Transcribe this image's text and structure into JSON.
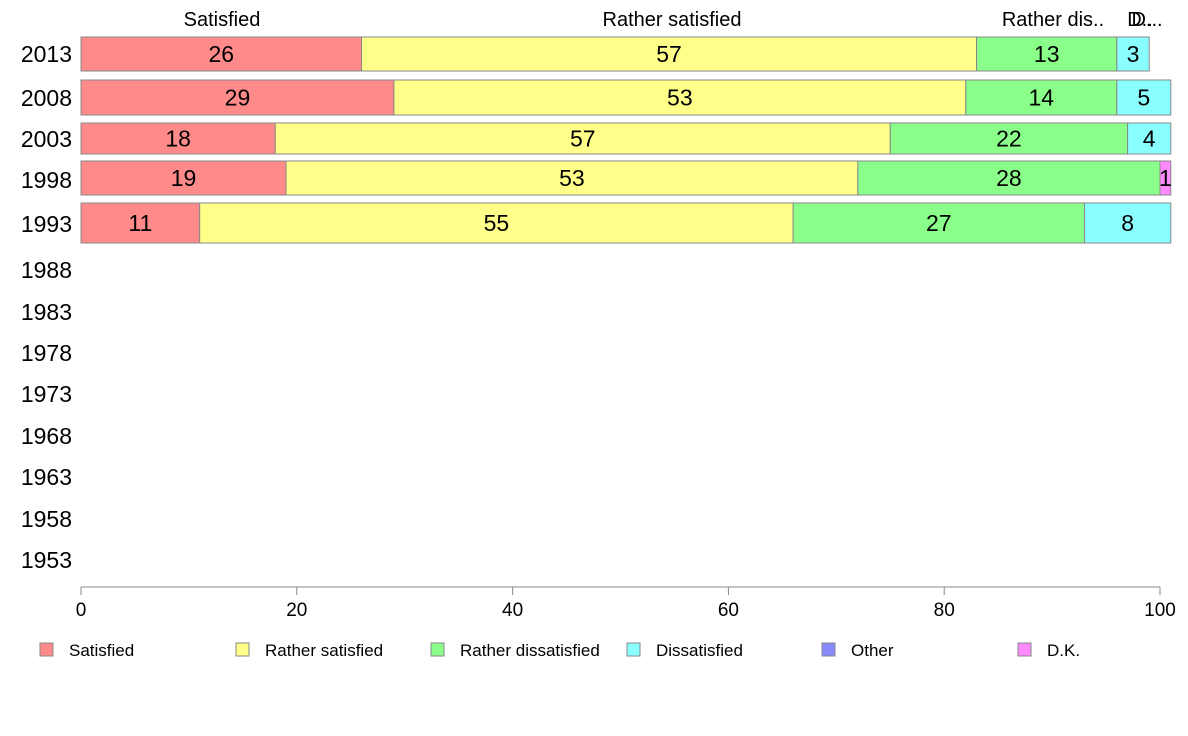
{
  "chart_data": {
    "type": "bar",
    "orientation": "horizontal",
    "stacked": true,
    "categories": [
      "2013",
      "2008",
      "2003",
      "1998",
      "1993",
      "1988",
      "1983",
      "1978",
      "1973",
      "1968",
      "1963",
      "1958",
      "1953"
    ],
    "series": [
      {
        "name": "Satisfied",
        "color": "#ff8a8a",
        "values": [
          26,
          29,
          18,
          19,
          11,
          null,
          null,
          null,
          null,
          null,
          null,
          null,
          null
        ]
      },
      {
        "name": "Rather satisfied",
        "color": "#ffff8a",
        "values": [
          57,
          53,
          57,
          53,
          55,
          null,
          null,
          null,
          null,
          null,
          null,
          null,
          null
        ]
      },
      {
        "name": "Rather dissatisfied",
        "color": "#8aff8a",
        "values": [
          13,
          14,
          22,
          28,
          27,
          null,
          null,
          null,
          null,
          null,
          null,
          null,
          null
        ]
      },
      {
        "name": "Dissatisfied",
        "color": "#8affff",
        "values": [
          3,
          5,
          4,
          0,
          8,
          null,
          null,
          null,
          null,
          null,
          null,
          null,
          null
        ]
      },
      {
        "name": "Other",
        "color": "#8a8aff",
        "values": [
          0,
          0,
          0,
          0,
          0,
          null,
          null,
          null,
          null,
          null,
          null,
          null,
          null
        ]
      },
      {
        "name": "D.K.",
        "color": "#ff8aff",
        "values": [
          0,
          0,
          0,
          1,
          0,
          null,
          null,
          null,
          null,
          null,
          null,
          null,
          null
        ]
      }
    ],
    "top_labels": [
      "Satisfied",
      "Rather satisfied",
      "Rather dis..",
      "D..",
      "D..."
    ],
    "x_ticks": [
      "0",
      "20",
      "40",
      "60",
      "80",
      "100"
    ],
    "xlim": [
      0,
      100
    ],
    "legend_position": "bottom",
    "grid": false
  }
}
